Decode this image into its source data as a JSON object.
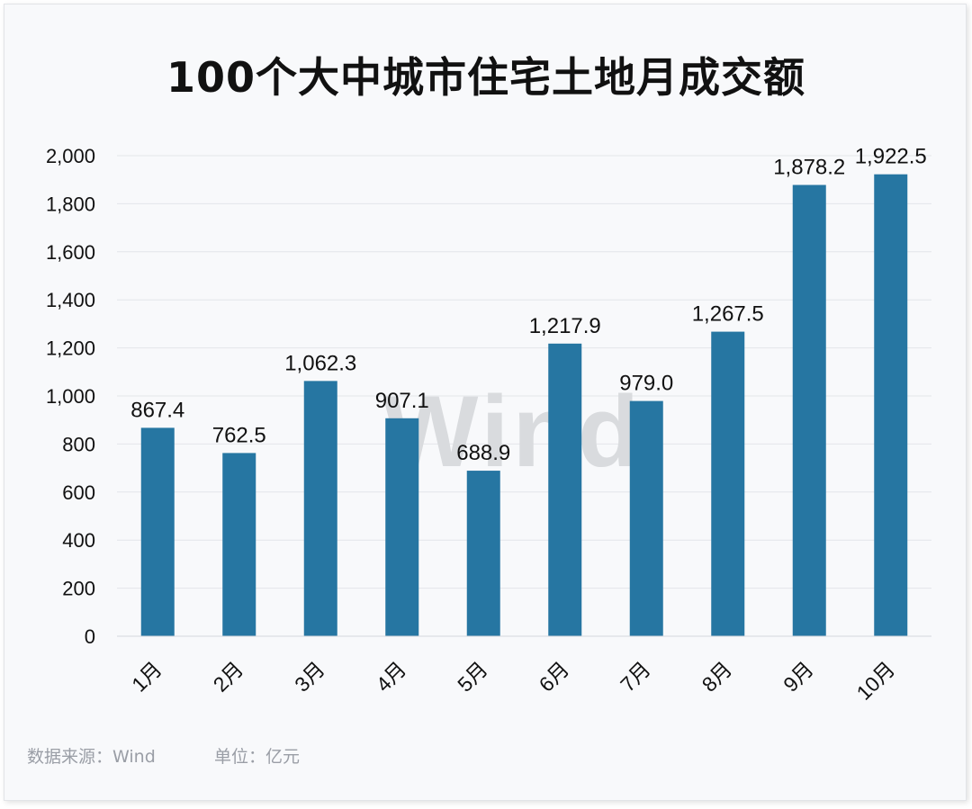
{
  "title": "100个大中城市住宅土地月成交额",
  "watermark": "Wind",
  "footer": {
    "source": "数据来源：Wind",
    "unit": "单位：亿元"
  },
  "colors": {
    "bar": "#2676a2",
    "grid": "#e3e6ea",
    "axis_text": "#111111",
    "watermark": "#d9dbde"
  },
  "chart_data": {
    "type": "bar",
    "title": "100个大中城市住宅土地月成交额",
    "categories": [
      "1月",
      "2月",
      "3月",
      "4月",
      "5月",
      "6月",
      "7月",
      "8月",
      "9月",
      "10月"
    ],
    "values": [
      867.4,
      762.5,
      1062.3,
      907.1,
      688.9,
      1217.9,
      979.0,
      1267.5,
      1878.2,
      1922.5
    ],
    "value_labels": [
      "867.4",
      "762.5",
      "1,062.3",
      "907.1",
      "688.9",
      "1,217.9",
      "979.0",
      "1,267.5",
      "1,878.2",
      "1,922.5"
    ],
    "yticks": [
      0,
      200,
      400,
      600,
      800,
      1000,
      1200,
      1400,
      1600,
      1800,
      2000
    ],
    "ytick_labels": [
      "0",
      "200",
      "400",
      "600",
      "800",
      "1,000",
      "1,200",
      "1,400",
      "1,600",
      "1,800",
      "2,000"
    ],
    "ylim": [
      0,
      2000
    ],
    "xlabel": "",
    "ylabel": "",
    "grid": true,
    "legend": "none"
  }
}
